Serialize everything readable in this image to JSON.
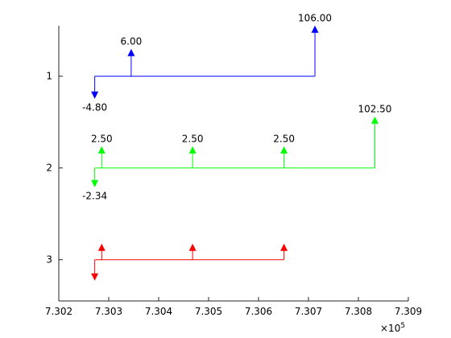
{
  "chart_data": {
    "type": "cash-flow-stem",
    "x_tick_labels": [
      "7.302",
      "7.303",
      "7.304",
      "7.305",
      "7.306",
      "7.307",
      "7.308",
      "7.309"
    ],
    "x_tick_values": [
      730200,
      730300,
      730400,
      730500,
      730600,
      730700,
      730800,
      730900
    ],
    "x_exponent_label": "×10",
    "x_exponent_power": "5",
    "xlim": [
      730200,
      730900
    ],
    "y_tick_labels": [
      "1",
      "2",
      "3"
    ],
    "y_tick_values": [
      1,
      2,
      3
    ],
    "ylim": [
      0.45,
      3.45
    ],
    "y_reversed": true,
    "series": [
      {
        "row": 1,
        "color": "#0000ff",
        "flows": [
          {
            "x": 730272,
            "amount": -4.8,
            "label": "-4.80"
          },
          {
            "x": 730345,
            "amount": 6.0,
            "label": "6.00"
          },
          {
            "x": 730713,
            "amount": 106.0,
            "label": "106.00"
          }
        ]
      },
      {
        "row": 2,
        "color": "#00ff00",
        "flows": [
          {
            "x": 730272,
            "amount": -2.34,
            "label": "-2.34"
          },
          {
            "x": 730286,
            "amount": 2.5,
            "label": "2.50"
          },
          {
            "x": 730468,
            "amount": 2.5,
            "label": "2.50"
          },
          {
            "x": 730651,
            "amount": 2.5,
            "label": "2.50"
          },
          {
            "x": 730833,
            "amount": 102.5,
            "label": "102.50"
          }
        ]
      },
      {
        "row": 3,
        "color": "#ff0000",
        "flows": [
          {
            "x": 730272,
            "amount": -1,
            "label": ""
          },
          {
            "x": 730286,
            "amount": 1,
            "label": ""
          },
          {
            "x": 730468,
            "amount": 1,
            "label": ""
          },
          {
            "x": 730651,
            "amount": 3,
            "label": ""
          }
        ]
      }
    ]
  }
}
